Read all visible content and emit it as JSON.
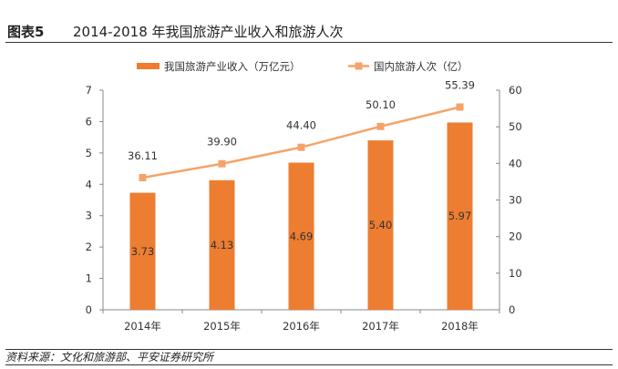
{
  "header": {
    "figure_label": "图表5",
    "title": "2014-2018 年我国旅游产业收入和旅游人次"
  },
  "source": "资料来源：文化和旅游部、平安证券研究所",
  "chart_data": {
    "type": "bar+line",
    "categories": [
      "2014年",
      "2015年",
      "2016年",
      "2017年",
      "2018年"
    ],
    "series": [
      {
        "name": "我国旅游产业收入（万亿元）",
        "type": "bar",
        "axis": "left",
        "color": "#ED7D31",
        "values": [
          3.73,
          4.13,
          4.69,
          5.4,
          5.97
        ],
        "labels": [
          "3.73",
          "4.13",
          "4.69",
          "5.40",
          "5.97"
        ]
      },
      {
        "name": "国内旅游人次（亿）",
        "type": "line",
        "axis": "right",
        "color": "#F4A46A",
        "marker": "square",
        "values": [
          36.11,
          39.9,
          44.4,
          50.1,
          55.39
        ],
        "labels": [
          "36.11",
          "39.90",
          "44.40",
          "50.10",
          "55.39"
        ]
      }
    ],
    "y_left": {
      "range": [
        0,
        7
      ],
      "ticks": [
        "0",
        "1",
        "2",
        "3",
        "4",
        "5",
        "6",
        "7"
      ]
    },
    "y_right": {
      "range": [
        0,
        60
      ],
      "ticks": [
        "0",
        "10",
        "20",
        "30",
        "40",
        "50",
        "60"
      ]
    },
    "grid": false,
    "legend": "top"
  }
}
